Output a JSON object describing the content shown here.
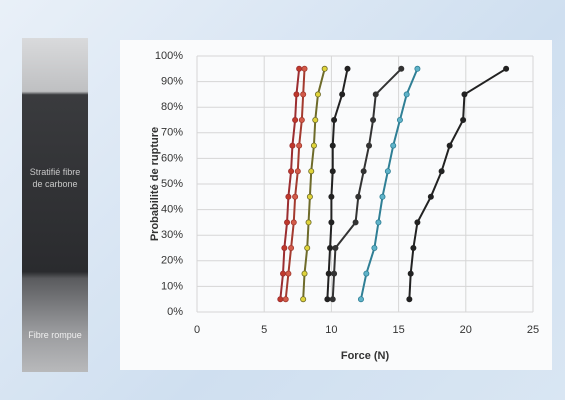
{
  "photo": {
    "label": "Stratifié fibre de carbone",
    "caption": "Fibre rompue"
  },
  "chart_data": {
    "type": "line",
    "x_label": "Force (N)",
    "y_label": "Probabilité de rupture",
    "xlim": [
      0,
      25
    ],
    "xticks": [
      0,
      5,
      10,
      15,
      20,
      25
    ],
    "ylim": [
      0,
      1
    ],
    "yticks": [
      {
        "value": 0,
        "label": "0%"
      },
      {
        "value": 0.1,
        "label": "10%"
      },
      {
        "value": 0.2,
        "label": "20%"
      },
      {
        "value": 0.3,
        "label": "30%"
      },
      {
        "value": 0.4,
        "label": "40%"
      },
      {
        "value": 0.5,
        "label": "50%"
      },
      {
        "value": 0.6,
        "label": "60%"
      },
      {
        "value": 0.7,
        "label": "70%"
      },
      {
        "value": 0.8,
        "label": "80%"
      },
      {
        "value": 0.9,
        "label": "90%"
      },
      {
        "value": 1,
        "label": "100%"
      }
    ],
    "grid": true,
    "series": [
      {
        "color": "#9b2d30",
        "marker": "#c0392b",
        "x": [
          6.2,
          6.4,
          6.5,
          6.7,
          6.8,
          7.0,
          7.1,
          7.3,
          7.4,
          7.6
        ],
        "values": [
          0.05,
          0.15,
          0.25,
          0.35,
          0.45,
          0.55,
          0.65,
          0.75,
          0.85,
          0.95
        ]
      },
      {
        "color": "#a33a2f",
        "marker": "#d35b4a",
        "x": [
          6.6,
          6.8,
          7.0,
          7.2,
          7.3,
          7.5,
          7.6,
          7.8,
          7.9,
          8.0
        ],
        "values": [
          0.05,
          0.15,
          0.25,
          0.35,
          0.45,
          0.55,
          0.65,
          0.75,
          0.85,
          0.95
        ]
      },
      {
        "color": "#6e6b2a",
        "marker": "#e0d43a",
        "x": [
          7.9,
          8.0,
          8.2,
          8.3,
          8.4,
          8.5,
          8.7,
          8.8,
          9.0,
          9.5
        ],
        "values": [
          0.05,
          0.15,
          0.25,
          0.35,
          0.45,
          0.55,
          0.65,
          0.75,
          0.85,
          0.95
        ]
      },
      {
        "color": "#222222",
        "marker": "#222222",
        "x": [
          9.7,
          9.8,
          9.9,
          10.0,
          10.0,
          10.1,
          10.1,
          10.2,
          10.8,
          11.2
        ],
        "values": [
          0.05,
          0.15,
          0.25,
          0.35,
          0.45,
          0.55,
          0.65,
          0.75,
          0.85,
          0.95
        ]
      },
      {
        "color": "#333333",
        "marker": "#333333",
        "x": [
          10.1,
          10.2,
          10.3,
          11.8,
          12.0,
          12.4,
          12.8,
          13.1,
          13.3,
          15.2
        ],
        "values": [
          0.05,
          0.15,
          0.25,
          0.35,
          0.45,
          0.55,
          0.65,
          0.75,
          0.85,
          0.95
        ]
      },
      {
        "color": "#2f7f95",
        "marker": "#5fb3c9",
        "x": [
          12.2,
          12.6,
          13.2,
          13.5,
          13.8,
          14.2,
          14.6,
          15.1,
          15.6,
          16.4
        ],
        "values": [
          0.05,
          0.15,
          0.25,
          0.35,
          0.45,
          0.55,
          0.65,
          0.75,
          0.85,
          0.95
        ]
      },
      {
        "color": "#222222",
        "marker": "#222222",
        "x": [
          15.8,
          15.9,
          16.1,
          16.4,
          17.4,
          18.2,
          18.8,
          19.8,
          19.9,
          23.0
        ],
        "values": [
          0.05,
          0.15,
          0.25,
          0.35,
          0.45,
          0.55,
          0.65,
          0.75,
          0.85,
          0.95
        ]
      }
    ]
  }
}
